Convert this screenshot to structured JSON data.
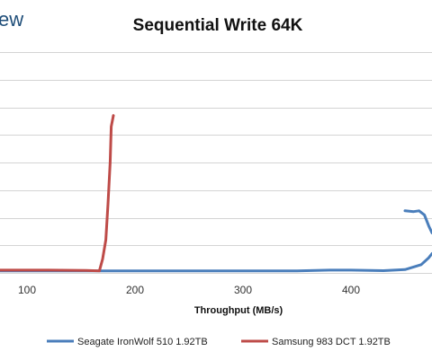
{
  "branding": {
    "logo_fragment": "ew"
  },
  "chart_data": {
    "type": "line",
    "title": "Sequential Write 64K",
    "xlabel": "Throughput (MB/s)",
    "ylabel": "",
    "xlim": [
      75,
      475
    ],
    "ylim": [
      0,
      8
    ],
    "xticks": [
      100,
      200,
      300,
      400
    ],
    "grid": true,
    "legend_position": "bottom",
    "series": [
      {
        "name": "Seagate IronWolf 510 1.92TB",
        "color": "#4a7ebb",
        "points": [
          [
            75,
            0.07
          ],
          [
            150,
            0.07
          ],
          [
            200,
            0.07
          ],
          [
            250,
            0.07
          ],
          [
            300,
            0.07
          ],
          [
            350,
            0.07
          ],
          [
            380,
            0.1
          ],
          [
            400,
            0.1
          ],
          [
            430,
            0.08
          ],
          [
            450,
            0.12
          ],
          [
            465,
            0.3
          ],
          [
            472,
            0.55
          ],
          [
            475,
            0.7
          ]
        ],
        "points_upper": [
          [
            450,
            2.25
          ],
          [
            458,
            2.22
          ],
          [
            463,
            2.25
          ],
          [
            468,
            2.1
          ],
          [
            472,
            1.7
          ],
          [
            475,
            1.45
          ]
        ]
      },
      {
        "name": "Samsung 983 DCT 1.92TB",
        "color": "#be4b48",
        "points": [
          [
            75,
            0.1
          ],
          [
            120,
            0.1
          ],
          [
            155,
            0.09
          ],
          [
            167,
            0.07
          ],
          [
            170,
            0.5
          ],
          [
            173,
            1.2
          ],
          [
            175,
            2.5
          ],
          [
            177,
            4.0
          ],
          [
            178,
            5.3
          ],
          [
            180,
            5.7
          ]
        ]
      }
    ]
  }
}
